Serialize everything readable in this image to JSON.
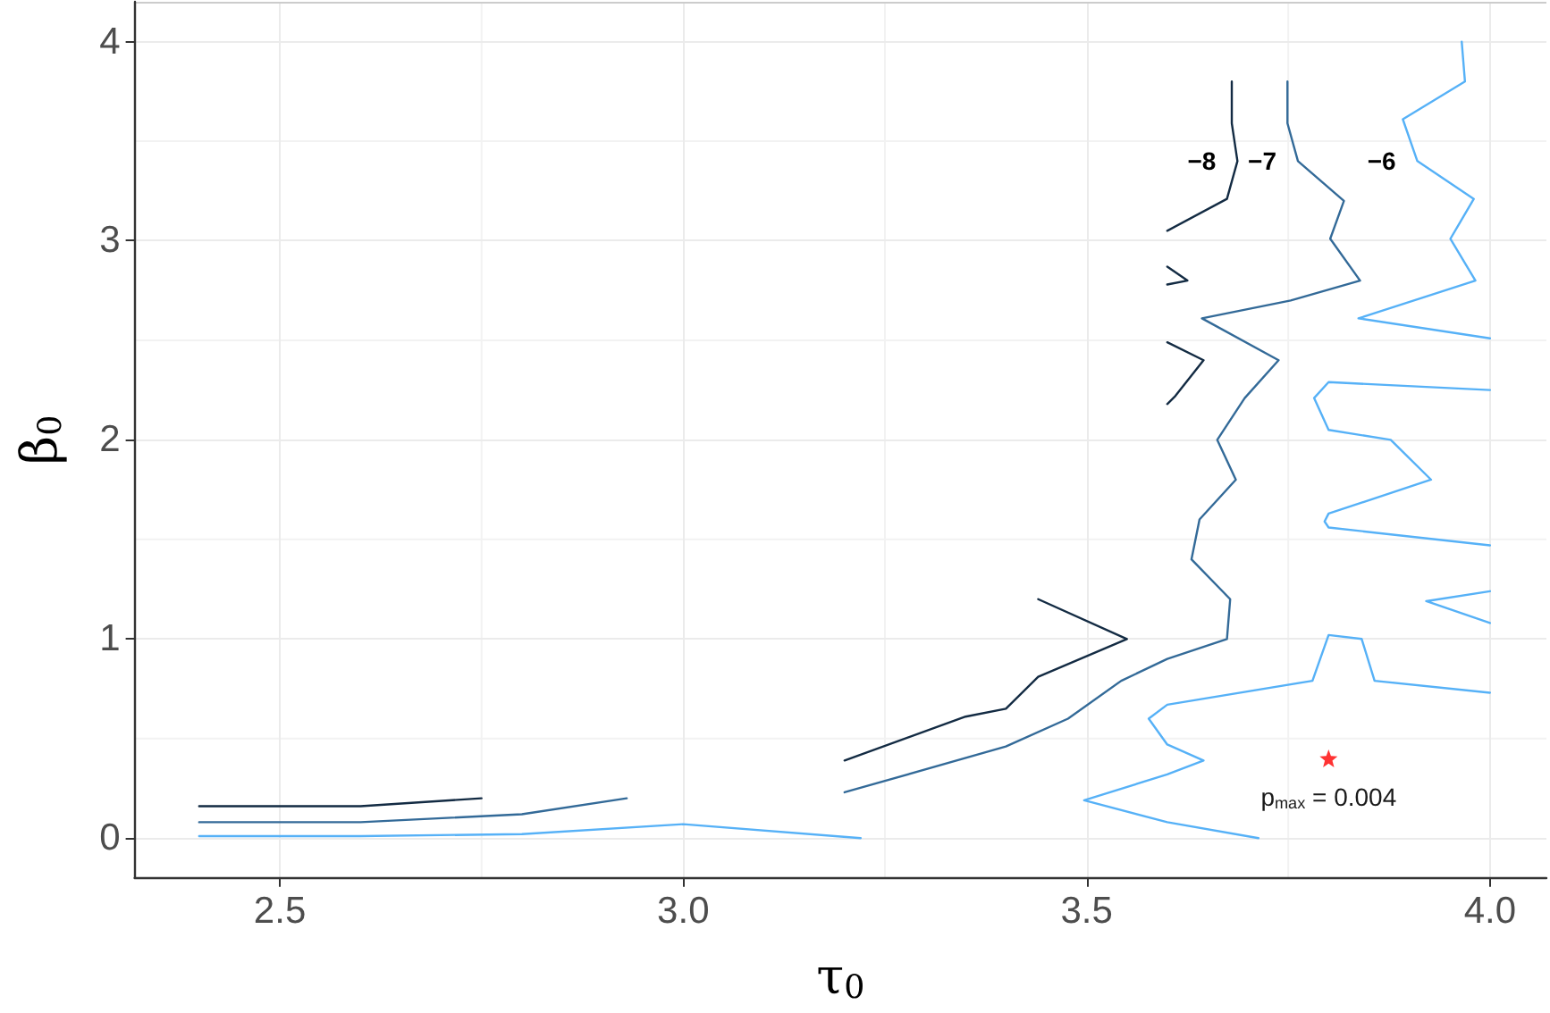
{
  "chart_data": {
    "type": "line",
    "xlabel": "τ$_{0}$",
    "ylabel": "β$_{0}$",
    "xlim": [
      2.32,
      4.07
    ],
    "ylim": [
      -0.2,
      4.2
    ],
    "xticks": [
      {
        "value": 2.5,
        "label": "2.5"
      },
      {
        "value": 2.75,
        "label": null
      },
      {
        "value": 3.0,
        "label": "3.0"
      },
      {
        "value": 3.25,
        "label": null
      },
      {
        "value": 3.5,
        "label": "3.5"
      },
      {
        "value": 3.75,
        "label": null
      },
      {
        "value": 4.0,
        "label": "4.0"
      }
    ],
    "yticks": [
      0,
      {
        "value": 0.5,
        "label": null
      },
      1,
      {
        "value": 1.5,
        "label": null
      },
      2,
      {
        "value": 2.5,
        "label": null
      },
      3,
      {
        "value": 3.5,
        "label": null
      },
      4
    ],
    "grid": true,
    "marker": "none",
    "line_style": "solid",
    "series": [
      {
        "name": "−8",
        "color": "#132b43",
        "x": [
          2.4,
          2.6,
          2.75,
          null,
          3.2,
          3.35,
          3.4,
          3.44,
          3.55,
          3.44,
          null,
          3.6,
          3.61,
          3.645,
          3.6,
          null,
          3.6,
          3.625,
          3.6,
          null,
          3.6,
          3.674,
          3.687,
          3.68,
          3.68
        ],
        "values": [
          0.16,
          0.16,
          0.2,
          null,
          0.39,
          0.61,
          0.65,
          0.81,
          1.0,
          1.2,
          null,
          2.18,
          2.22,
          2.4,
          2.49,
          null,
          2.87,
          2.8,
          2.78,
          null,
          3.05,
          3.21,
          3.4,
          3.59,
          3.8
        ]
      },
      {
        "name": "−7",
        "color": "#336a98",
        "x": [
          2.4,
          2.6,
          2.8,
          2.93,
          null,
          3.2,
          3.4,
          3.477,
          3.543,
          3.6,
          3.674,
          3.678,
          3.63,
          3.64,
          3.685,
          3.662,
          3.696,
          3.738,
          3.643,
          3.753,
          3.839,
          3.802,
          3.819,
          3.762,
          3.749,
          3.749
        ],
        "values": [
          0.08,
          0.08,
          0.12,
          0.2,
          null,
          0.23,
          0.46,
          0.6,
          0.79,
          0.9,
          1.0,
          1.2,
          1.4,
          1.6,
          1.8,
          2.0,
          2.21,
          2.4,
          2.61,
          2.7,
          2.8,
          3.01,
          3.2,
          3.4,
          3.59,
          3.8
        ]
      },
      {
        "name": "−6",
        "color": "#56b1f7",
        "x": [
          2.4,
          2.6,
          2.8,
          3.0,
          3.22,
          null,
          3.713,
          3.6,
          3.497,
          3.6,
          3.645,
          3.6,
          3.577,
          3.6,
          3.78,
          3.8,
          3.841,
          3.857,
          4.0,
          null,
          4.0,
          3.921,
          4.0,
          null,
          4.0,
          3.8,
          3.782,
          3.8,
          3.877,
          3.927,
          3.8,
          3.795,
          3.8,
          4.0,
          null,
          4.0,
          3.837,
          3.982,
          3.951,
          3.98,
          3.91,
          3.892,
          3.969,
          3.965
        ],
        "values": [
          0.01,
          0.01,
          0.02,
          0.07,
          0.0,
          null,
          0.0,
          0.08,
          0.19,
          0.32,
          0.39,
          0.47,
          0.6,
          0.67,
          0.79,
          1.02,
          1.0,
          0.79,
          0.73,
          null,
          1.24,
          1.19,
          1.08,
          null,
          2.25,
          2.29,
          2.21,
          2.05,
          2.0,
          1.8,
          1.63,
          1.59,
          1.56,
          1.47,
          null,
          2.51,
          2.61,
          2.8,
          3.01,
          3.21,
          3.4,
          3.61,
          3.8,
          4.0
        ]
      },
      {
        "type": "scatter",
        "color": "#ff0000",
        "marker": "star",
        "x": [
          3.8
        ],
        "values": [
          0.4
        ]
      }
    ],
    "annotations": [
      {
        "text": "p$_{max}$ = 0.004",
        "x": 3.8,
        "y": 0.4
      }
    ]
  }
}
